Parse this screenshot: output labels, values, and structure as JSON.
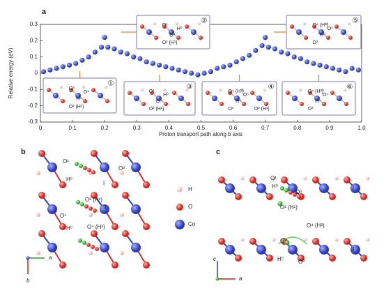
{
  "chart_data": {
    "type": "scatter",
    "panel_label": "a",
    "x_label": "Proton transport path along b axis",
    "y_label": "Relative energy (eV)",
    "color": "#2b39b8",
    "x": [
      0.01,
      0.03,
      0.05,
      0.07,
      0.09,
      0.11,
      0.13,
      0.15,
      0.17,
      0.19,
      0.2,
      0.21,
      0.23,
      0.25,
      0.27,
      0.29,
      0.31,
      0.33,
      0.35,
      0.37,
      0.39,
      0.41,
      0.43,
      0.45,
      0.47,
      0.49,
      0.51,
      0.53,
      0.55,
      0.57,
      0.59,
      0.61,
      0.63,
      0.65,
      0.67,
      0.69,
      0.7,
      0.71,
      0.73,
      0.75,
      0.77,
      0.79,
      0.81,
      0.83,
      0.85,
      0.87,
      0.89,
      0.91,
      0.93,
      0.95,
      0.97,
      0.99
    ],
    "values": [
      0.01,
      0.02,
      0.03,
      0.04,
      0.05,
      0.06,
      0.08,
      0.1,
      0.13,
      0.16,
      0.22,
      0.16,
      0.15,
      0.13,
      0.12,
      0.1,
      0.09,
      0.07,
      0.06,
      0.05,
      0.04,
      0.03,
      0.02,
      0.01,
      0,
      -0.01,
      0,
      0.01,
      0.03,
      0.04,
      0.05,
      0.07,
      0.09,
      0.11,
      0.14,
      0.17,
      0.22,
      0.16,
      0.15,
      0.13,
      0.12,
      0.1,
      0.09,
      0.07,
      0.06,
      0.05,
      0.04,
      0.03,
      0.02,
      0.01,
      0.03,
      0.02
    ],
    "xlim": [
      0,
      1
    ],
    "ylim": [
      -0.3,
      0.3
    ],
    "xticks": [
      0,
      0.1,
      0.2,
      0.3,
      0.4,
      0.5,
      0.6,
      0.7,
      0.8,
      0.9,
      {
        "value": 1,
        "label": "1.0"
      }
    ],
    "yticks": [
      -0.3,
      -0.2,
      -0.1,
      0,
      0.1,
      0.2,
      0.3
    ],
    "insets": [
      {
        "number": "①",
        "labels": [
          "O³",
          "O¹",
          "H⁰",
          "O² (H¹)"
        ]
      },
      {
        "number": "②",
        "labels": [
          "O¹",
          "H⁰",
          "O³",
          "O² (H¹)"
        ]
      },
      {
        "number": "③",
        "labels": [
          "O¹",
          "H⁰",
          "O³",
          "O² (H¹)"
        ]
      },
      {
        "number": "④",
        "labels": [
          "O⁴ (H²)",
          "O⁵",
          "H⁰",
          "O³",
          "O² (H¹)"
        ]
      },
      {
        "number": "⑤",
        "labels": [
          "O⁴ (H²)",
          "O⁵",
          "H⁰",
          "O³"
        ]
      },
      {
        "number": "⑥",
        "labels": [
          "O⁴ (H²)",
          "O⁵",
          "H⁰",
          "O³"
        ]
      }
    ]
  },
  "panels": {
    "b": {
      "label": "b",
      "atoms": [
        "O¹",
        "H⁰",
        "I",
        "O² (H¹)",
        "II",
        "O³",
        "O⁵",
        "H⁰",
        "O⁴ (H²)"
      ],
      "legend": [
        "H",
        "O",
        "Co"
      ],
      "axes": [
        "a",
        "b"
      ]
    },
    "c": {
      "label": "c",
      "atoms": [
        "O¹",
        "H⁰",
        "O³",
        "I",
        "O² (H¹)",
        "O⁴ (H²)",
        "O⁵",
        "H⁰",
        "O³",
        "II"
      ],
      "axes": [
        "c",
        "a"
      ]
    }
  }
}
